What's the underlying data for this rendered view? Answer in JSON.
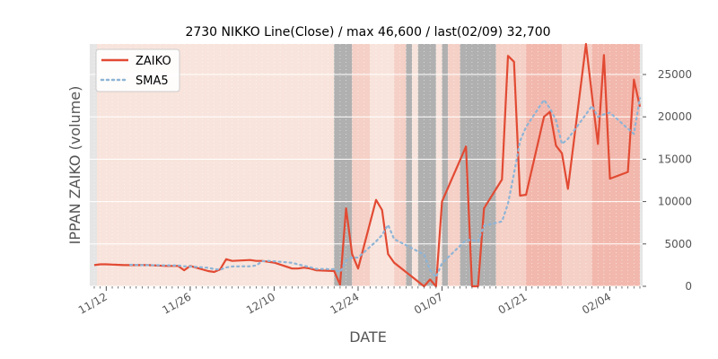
{
  "chart_data": {
    "type": "line",
    "title": "2730 NIKKO Line(Close) / max 46,600 / last(02/09) 32,700",
    "xlabel": "DATE",
    "ylabel": "IPPAN ZAIKO (volume)",
    "ylim": [
      0,
      28600
    ],
    "yticks": [
      0,
      5000,
      10000,
      15000,
      20000,
      25000
    ],
    "ytick_labels": [
      "0",
      "5000",
      "10000",
      "15000",
      "20000",
      "25000"
    ],
    "x_start": "2021-11-10",
    "x_end": "2022-02-09",
    "xtick_dates": [
      "2021-11-12",
      "2021-11-26",
      "2021-12-10",
      "2021-12-24",
      "2022-01-07",
      "2022-01-21",
      "2022-02-04"
    ],
    "xtick_labels": [
      "11/12",
      "11/26",
      "12/10",
      "12/24",
      "01/07",
      "01/21",
      "02/04"
    ],
    "grid": true,
    "legend_position": "top-left",
    "colors": {
      "zaiko": "#e24a33",
      "sma5": "#8eb4d6",
      "gray_band": "#b0b0b0",
      "band_light": "#f8e4dc",
      "band_mid": "#f5d0c6",
      "band_strong": "#f2b8ad",
      "frame": "#e5e5e5"
    },
    "series": [
      {
        "name": "ZAIKO",
        "style": "solid",
        "x": [
          "2021-11-10",
          "2021-11-11",
          "2021-11-12",
          "2021-11-15",
          "2021-11-16",
          "2021-11-17",
          "2021-11-18",
          "2021-11-19",
          "2021-11-22",
          "2021-11-24",
          "2021-11-25",
          "2021-11-26",
          "2021-11-29",
          "2021-11-30",
          "2021-12-01",
          "2021-12-02",
          "2021-12-03",
          "2021-12-06",
          "2021-12-07",
          "2021-12-08",
          "2021-12-09",
          "2021-12-10",
          "2021-12-13",
          "2021-12-14",
          "2021-12-15",
          "2021-12-16",
          "2021-12-17",
          "2021-12-20",
          "2021-12-21",
          "2021-12-22",
          "2021-12-23",
          "2021-12-24",
          "2021-12-27",
          "2021-12-28",
          "2021-12-29",
          "2021-12-30",
          "2022-01-04",
          "2022-01-05",
          "2022-01-06",
          "2022-01-07",
          "2022-01-11",
          "2022-01-12",
          "2022-01-13",
          "2022-01-14",
          "2022-01-17",
          "2022-01-18",
          "2022-01-19",
          "2022-01-20",
          "2022-01-21",
          "2022-01-24",
          "2022-01-25",
          "2022-01-26",
          "2022-01-27",
          "2022-01-28",
          "2022-01-31",
          "2022-02-01",
          "2022-02-02",
          "2022-02-03",
          "2022-02-04",
          "2022-02-07",
          "2022-02-08",
          "2022-02-09"
        ],
        "values": [
          2500,
          2600,
          2600,
          2500,
          2500,
          2500,
          2500,
          2500,
          2400,
          2400,
          1900,
          2400,
          1800,
          1700,
          2000,
          3200,
          3000,
          3100,
          3000,
          3000,
          2900,
          2800,
          2100,
          2100,
          2200,
          2100,
          1900,
          1800,
          200,
          9200,
          3800,
          2100,
          10200,
          9000,
          3800,
          2800,
          0,
          800,
          0,
          10000,
          16500,
          0,
          0,
          9200,
          12600,
          27200,
          26500,
          10700,
          10800,
          20000,
          20600,
          16600,
          15700,
          11500,
          28600,
          22600,
          16800,
          27300,
          12700,
          13500,
          24400,
          21200
        ]
      },
      {
        "name": "SMA5",
        "style": "dotted",
        "x": [
          "2021-11-16",
          "2021-11-17",
          "2021-11-18",
          "2021-11-19",
          "2021-11-22",
          "2021-11-24",
          "2021-11-25",
          "2021-11-26",
          "2021-11-29",
          "2021-11-30",
          "2021-12-01",
          "2021-12-02",
          "2021-12-03",
          "2021-12-06",
          "2021-12-07",
          "2021-12-08",
          "2021-12-09",
          "2021-12-10",
          "2021-12-13",
          "2021-12-14",
          "2021-12-15",
          "2021-12-16",
          "2021-12-17",
          "2021-12-20",
          "2021-12-21",
          "2021-12-22",
          "2021-12-23",
          "2021-12-24",
          "2021-12-27",
          "2021-12-28",
          "2021-12-29",
          "2021-12-30",
          "2022-01-04",
          "2022-01-05",
          "2022-01-06",
          "2022-01-07",
          "2022-01-11",
          "2022-01-12",
          "2022-01-13",
          "2022-01-14",
          "2022-01-17",
          "2022-01-18",
          "2022-01-19",
          "2022-01-20",
          "2022-01-21",
          "2022-01-24",
          "2022-01-25",
          "2022-01-26",
          "2022-01-27",
          "2022-01-28",
          "2022-01-31",
          "2022-02-01",
          "2022-02-02",
          "2022-02-03",
          "2022-02-04",
          "2022-02-07",
          "2022-02-08",
          "2022-02-09"
        ],
        "values": [
          2540,
          2520,
          2500,
          2500,
          2480,
          2460,
          2360,
          2340,
          2180,
          2040,
          1960,
          2220,
          2340,
          2360,
          2460,
          2960,
          3000,
          2960,
          2780,
          2580,
          2420,
          2260,
          2060,
          2020,
          1660,
          3040,
          3380,
          3400,
          5300,
          6060,
          7260,
          5580,
          3740,
          1900,
          1080,
          2720,
          5460,
          5460,
          5300,
          7140,
          7660,
          9760,
          13300,
          17140,
          18800,
          22000,
          21000,
          19600,
          16800,
          17400,
          20300,
          21300,
          20000,
          20300,
          20500,
          18600,
          18000,
          22200
        ]
      }
    ],
    "shaded_ranges": [
      {
        "start": "2021-11-10",
        "end": "2021-11-26",
        "level": "light"
      },
      {
        "start": "2021-11-26",
        "end": "2021-12-20",
        "level": "light"
      },
      {
        "start": "2021-12-20",
        "end": "2021-12-23",
        "level": "gray"
      },
      {
        "start": "2021-12-23",
        "end": "2021-12-26",
        "level": "mid"
      },
      {
        "start": "2021-12-26",
        "end": "2021-12-30",
        "level": "light"
      },
      {
        "start": "2021-12-30",
        "end": "2022-01-01",
        "level": "mid"
      },
      {
        "start": "2022-01-01",
        "end": "2022-01-02",
        "level": "gray"
      },
      {
        "start": "2022-01-02",
        "end": "2022-01-03",
        "level": "light"
      },
      {
        "start": "2022-01-03",
        "end": "2022-01-06",
        "level": "gray"
      },
      {
        "start": "2022-01-06",
        "end": "2022-01-07",
        "level": "light"
      },
      {
        "start": "2022-01-07",
        "end": "2022-01-08",
        "level": "gray"
      },
      {
        "start": "2022-01-08",
        "end": "2022-01-10",
        "level": "mid"
      },
      {
        "start": "2022-01-10",
        "end": "2022-01-16",
        "level": "gray"
      },
      {
        "start": "2022-01-16",
        "end": "2022-01-21",
        "level": "mid"
      },
      {
        "start": "2022-01-21",
        "end": "2022-01-27",
        "level": "strong"
      },
      {
        "start": "2022-01-27",
        "end": "2022-02-01",
        "level": "mid"
      },
      {
        "start": "2022-02-01",
        "end": "2022-02-03",
        "level": "strong"
      },
      {
        "start": "2022-02-03",
        "end": "2022-02-10",
        "level": "strong"
      }
    ]
  }
}
